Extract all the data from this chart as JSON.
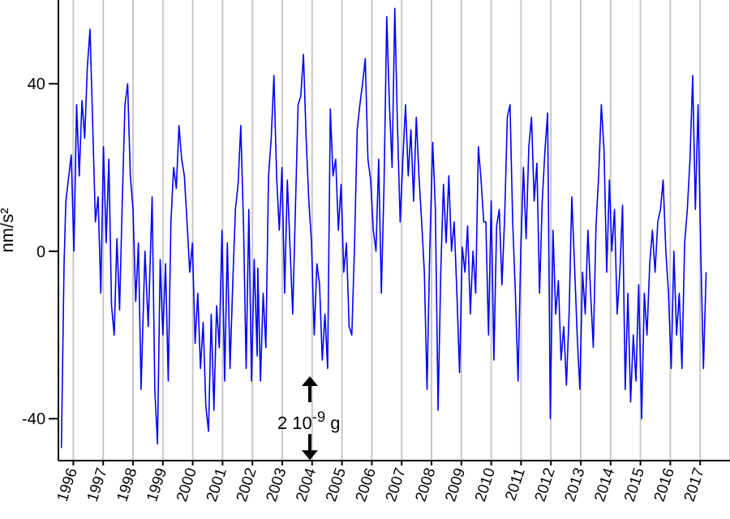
{
  "chart_data": {
    "type": "line",
    "ylabel": "nm/s²",
    "annotations": [
      "2 10$^{-9}$ g"
    ],
    "xlim": [
      1995.5,
      2018
    ],
    "xticks": [
      1996,
      1997,
      1998,
      1999,
      2000,
      2001,
      2002,
      2003,
      2004,
      2005,
      2006,
      2007,
      2008,
      2009,
      2010,
      2011,
      2012,
      2013,
      2014,
      2015,
      2016,
      2017
    ],
    "ylim": [
      -50,
      60
    ],
    "yticks": [
      -40,
      0,
      40
    ],
    "grid": "x",
    "marker": "none",
    "line_style": "solid",
    "x": [
      1995.6,
      1995.69,
      1995.75,
      1995.93,
      1996.02,
      1996.11,
      1996.2,
      1996.29,
      1996.38,
      1996.47,
      1996.56,
      1996.65,
      1996.74,
      1996.83,
      1996.92,
      1997.01,
      1997.1,
      1997.19,
      1997.28,
      1997.37,
      1997.46,
      1997.55,
      1997.64,
      1997.73,
      1997.82,
      1997.91,
      1998.0,
      1998.09,
      1998.18,
      1998.27,
      1998.4,
      1998.51,
      1998.64,
      1998.73,
      1998.82,
      1998.91,
      1999.0,
      1999.09,
      1999.18,
      1999.27,
      1999.36,
      1999.45,
      1999.54,
      1999.63,
      1999.72,
      1999.81,
      1999.9,
      1999.99,
      2000.08,
      2000.17,
      2000.26,
      2000.35,
      2000.44,
      2000.53,
      2000.62,
      2000.71,
      2000.8,
      2000.89,
      2000.98,
      2001.07,
      2001.16,
      2001.25,
      2001.34,
      2001.43,
      2001.52,
      2001.61,
      2001.7,
      2001.79,
      2001.88,
      2001.97,
      2002.06,
      2002.16,
      2002.18,
      2002.27,
      2002.36,
      2002.45,
      2002.54,
      2002.63,
      2002.72,
      2002.81,
      2002.9,
      2002.99,
      2003.08,
      2003.17,
      2003.26,
      2003.35,
      2003.44,
      2003.53,
      2003.62,
      2003.71,
      2003.8,
      2003.89,
      2003.98,
      2004.07,
      2004.16,
      2004.25,
      2004.34,
      2004.43,
      2004.52,
      2004.61,
      2004.7,
      2004.79,
      2004.88,
      2004.97,
      2005.06,
      2005.15,
      2005.24,
      2005.33,
      2005.42,
      2005.51,
      2005.6,
      2005.69,
      2005.78,
      2005.87,
      2005.96,
      2006.05,
      2006.14,
      2006.23,
      2006.32,
      2006.41,
      2006.5,
      2006.59,
      2006.68,
      2006.77,
      2006.86,
      2006.95,
      2007.04,
      2007.13,
      2007.22,
      2007.31,
      2007.4,
      2007.49,
      2007.58,
      2007.67,
      2007.76,
      2007.85,
      2007.94,
      2008.04,
      2008.13,
      2008.22,
      2008.31,
      2008.4,
      2008.49,
      2008.58,
      2008.67,
      2008.76,
      2008.85,
      2008.94,
      2009.03,
      2009.12,
      2009.21,
      2009.3,
      2009.39,
      2009.48,
      2009.57,
      2009.66,
      2009.75,
      2009.82,
      2009.91,
      2010.0,
      2010.09,
      2010.18,
      2010.27,
      2010.36,
      2010.45,
      2010.54,
      2010.63,
      2010.72,
      2010.81,
      2010.9,
      2010.99,
      2011.08,
      2011.17,
      2011.26,
      2011.35,
      2011.44,
      2011.53,
      2011.62,
      2011.71,
      2011.8,
      2011.89,
      2011.98,
      2012.07,
      2012.16,
      2012.25,
      2012.34,
      2012.43,
      2012.52,
      2012.61,
      2012.7,
      2012.79,
      2012.88,
      2012.97,
      2013.06,
      2013.15,
      2013.24,
      2013.33,
      2013.42,
      2013.51,
      2013.6,
      2013.69,
      2013.78,
      2013.87,
      2013.96,
      2014.04,
      2014.13,
      2014.22,
      2014.31,
      2014.4,
      2014.49,
      2014.58,
      2014.67,
      2014.76,
      2014.85,
      2014.94,
      2015.04,
      2015.13,
      2015.22,
      2015.31,
      2015.4,
      2015.49,
      2015.58,
      2015.67,
      2015.76,
      2015.85,
      2015.94,
      2016.03,
      2016.12,
      2016.21,
      2016.3,
      2016.39,
      2016.48,
      2016.57,
      2016.66,
      2016.75,
      2016.84,
      2016.93,
      2017.02,
      2017.11,
      2017.2
    ],
    "series": [
      {
        "color": "#0000ff",
        "values": [
          -47,
          -3,
          12,
          23,
          0,
          35,
          18,
          36,
          27,
          44,
          53,
          30,
          7,
          13,
          -10,
          25,
          2,
          22,
          -13,
          -20,
          3,
          -14,
          12,
          35,
          40,
          18,
          10,
          -12,
          2,
          -33,
          0,
          -18,
          13,
          -33,
          -46,
          -2,
          -20,
          -3,
          -31,
          7,
          20,
          15,
          30,
          22,
          18,
          7,
          -5,
          2,
          -22,
          -10,
          -28,
          -17,
          -37,
          -43,
          -15,
          -38,
          -13,
          -23,
          5,
          -31,
          2,
          -28,
          -8,
          10,
          16,
          30,
          7,
          -28,
          10,
          -31,
          -2,
          -25,
          -4,
          -31,
          -10,
          -23,
          18,
          27,
          42,
          18,
          5,
          20,
          -10,
          17,
          1,
          -15,
          10,
          35,
          37,
          47,
          27,
          12,
          2,
          -20,
          -3,
          -8,
          -26,
          -15,
          -28,
          34,
          18,
          22,
          5,
          16,
          -5,
          2,
          -18,
          -20,
          1,
          29,
          35,
          40,
          46,
          22,
          17,
          5,
          0,
          22,
          -10,
          16,
          56,
          35,
          20,
          58,
          30,
          7,
          22,
          35,
          18,
          29,
          12,
          32,
          18,
          7,
          -5,
          -33,
          0,
          26,
          10,
          -38,
          -5,
          16,
          2,
          18,
          0,
          7,
          -10,
          -29,
          1,
          -5,
          6,
          -15,
          0,
          -10,
          25,
          17,
          7,
          7,
          -20,
          12,
          -26,
          6,
          10,
          -8,
          8,
          32,
          35,
          7,
          -10,
          -31,
          0,
          20,
          3,
          25,
          32,
          12,
          21,
          -10,
          12,
          24,
          33,
          -40,
          5,
          -15,
          -7,
          -26,
          -18,
          -32,
          -15,
          13,
          -3,
          -20,
          -33,
          -5,
          -15,
          5,
          -10,
          -23,
          6,
          18,
          35,
          24,
          -5,
          17,
          0,
          10,
          -15,
          -5,
          11,
          -33,
          -10,
          -36,
          -20,
          -31,
          -8,
          -40,
          -10,
          -20,
          -3,
          5,
          -5,
          7,
          10,
          17,
          0,
          -10,
          -28,
          0,
          -20,
          -10,
          -28,
          2,
          10,
          22,
          42,
          10,
          35,
          0,
          -28,
          -5
        ]
      }
    ]
  }
}
